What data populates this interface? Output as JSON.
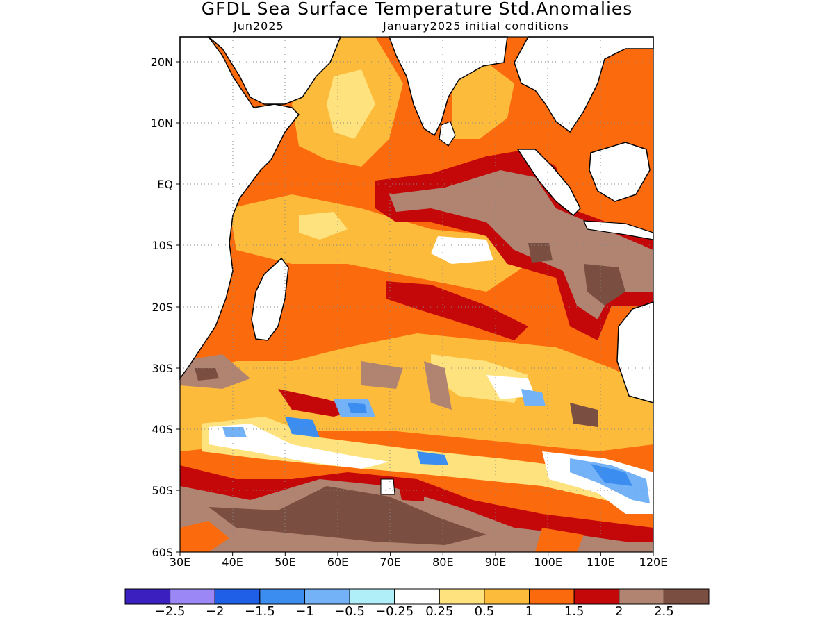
{
  "title": "GFDL Sea Surface Temperature Std.Anomalies",
  "subtitle_left": "Jun2025",
  "subtitle_right": "January2025 initial conditions",
  "map": {
    "lon_range": [
      30,
      120
    ],
    "lat_range": [
      -60,
      24
    ],
    "lon_ticks": [
      "30E",
      "40E",
      "50E",
      "60E",
      "70E",
      "80E",
      "90E",
      "100E",
      "110E",
      "120E"
    ],
    "lat_ticks": [
      "20N",
      "10N",
      "EQ",
      "10S",
      "20S",
      "30S",
      "40S",
      "50S",
      "60S"
    ],
    "grid": "dotted"
  },
  "colorbar": {
    "colors": [
      "#3b1fbf",
      "#9b87f5",
      "#1f5fe8",
      "#3b8ef0",
      "#73b2f7",
      "#b0eef8",
      "#ffffff",
      "#fde27e",
      "#fdbb3c",
      "#fb6a0c",
      "#c4080a",
      "#b08470",
      "#7a4e40"
    ],
    "labels": [
      "−2.5",
      "−2",
      "−1.5",
      "−1",
      "−0.5",
      "−0.25",
      "0.25",
      "0.5",
      "1",
      "1.5",
      "2",
      "2.5"
    ]
  }
}
